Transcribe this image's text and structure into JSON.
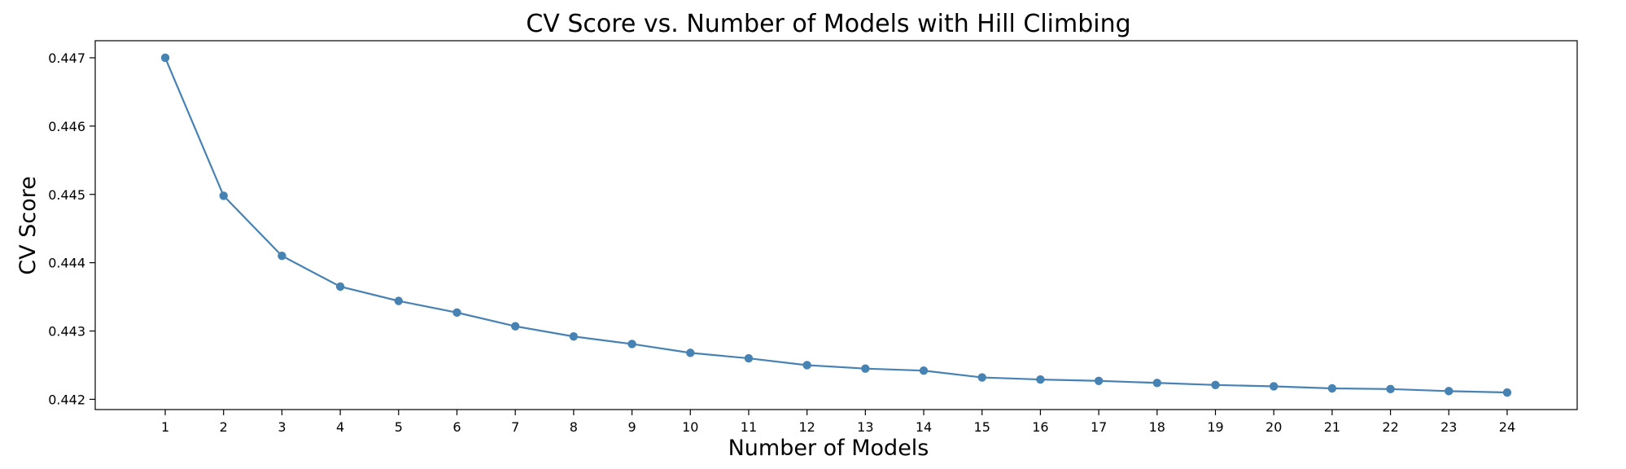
{
  "chart_data": {
    "type": "line",
    "title": "CV Score vs. Number of Models with Hill Climbing",
    "xlabel": "Number of Models",
    "ylabel": "CV Score",
    "x": [
      1,
      2,
      3,
      4,
      5,
      6,
      7,
      8,
      9,
      10,
      11,
      12,
      13,
      14,
      15,
      16,
      17,
      18,
      19,
      20,
      21,
      22,
      23,
      24
    ],
    "series": [
      {
        "values": [
          0.447,
          0.44498,
          0.4441,
          0.44365,
          0.44344,
          0.44327,
          0.44307,
          0.44292,
          0.44281,
          0.44268,
          0.4426,
          0.4425,
          0.44245,
          0.44242,
          0.44232,
          0.44229,
          0.44227,
          0.44224,
          0.44221,
          0.44219,
          0.44216,
          0.44215,
          0.44212,
          0.4421
        ],
        "color": "#4682b4"
      }
    ],
    "xticks": [
      "1",
      "2",
      "3",
      "4",
      "5",
      "6",
      "7",
      "8",
      "9",
      "10",
      "11",
      "12",
      "13",
      "14",
      "15",
      "16",
      "17",
      "18",
      "19",
      "20",
      "21",
      "22",
      "23",
      "24"
    ],
    "yticks": [
      0.442,
      0.443,
      0.444,
      0.445,
      0.446,
      0.447
    ],
    "ytick_labels": [
      "0.442",
      "0.443",
      "0.444",
      "0.445",
      "0.446",
      "0.447"
    ],
    "xlim": [
      -0.2,
      25.2
    ],
    "ylim": [
      0.44185,
      0.44725
    ],
    "grid": false,
    "legend": "none"
  }
}
